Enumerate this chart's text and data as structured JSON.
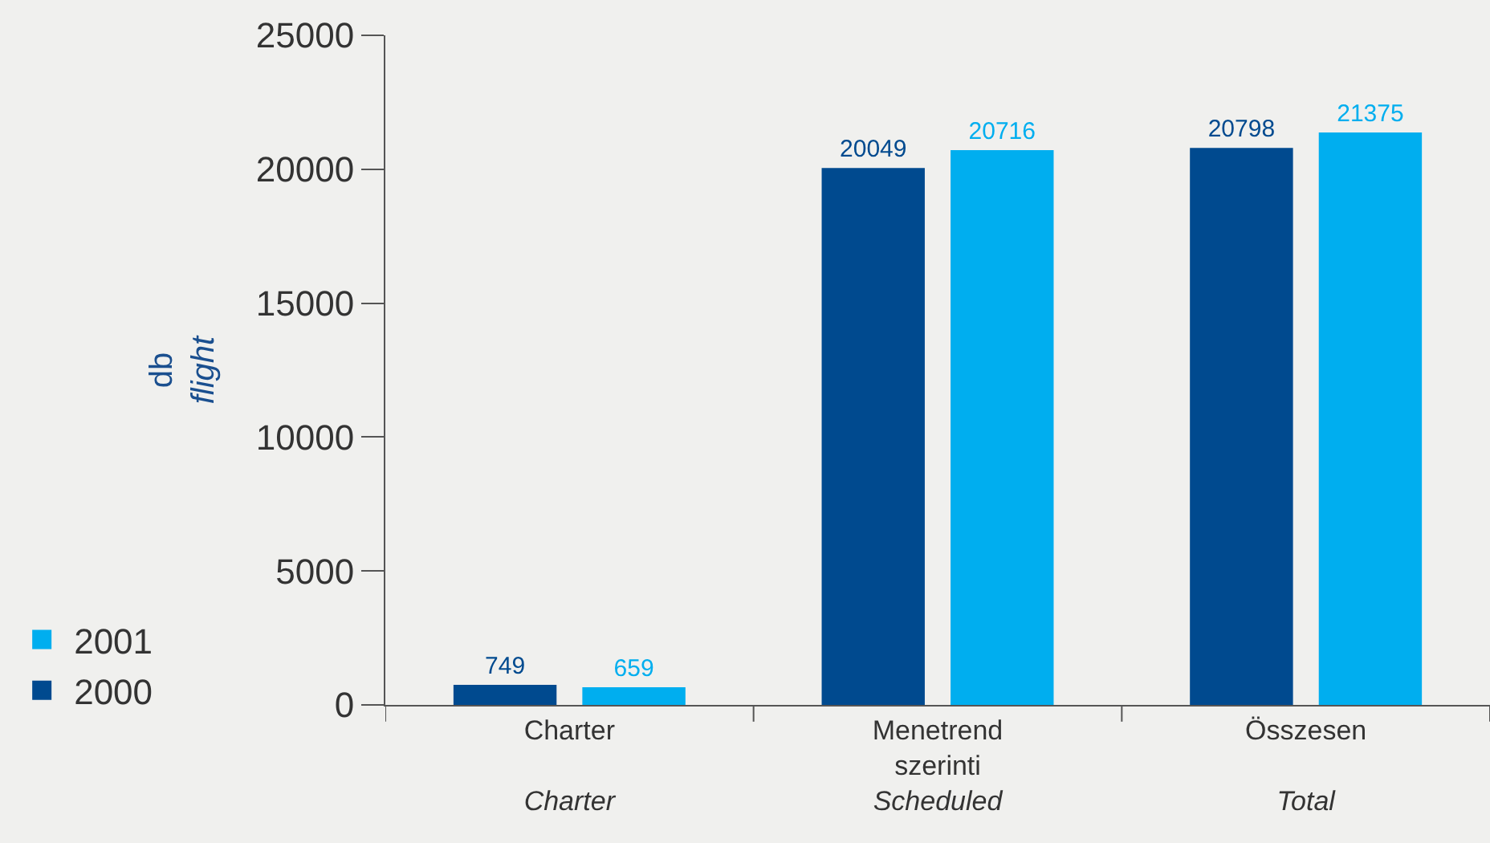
{
  "chart_data": {
    "type": "bar",
    "ylabel": "db\nflight",
    "categories": [
      "Charter\n\nCharter",
      "Menetrend\nszerinti\nScheduled",
      "Összesen\n\nTotal"
    ],
    "series": [
      {
        "name": "2000",
        "color": "#004a8f",
        "values": [
          749,
          20049,
          20798
        ]
      },
      {
        "name": "2001",
        "color": "#00aeef",
        "values": [
          659,
          20716,
          21375
        ]
      }
    ],
    "ylim": [
      0,
      25000
    ],
    "yticks": [
      0,
      5000,
      10000,
      15000,
      20000,
      25000
    ],
    "grid": false,
    "legend": "bottom left",
    "data_labels": true
  }
}
